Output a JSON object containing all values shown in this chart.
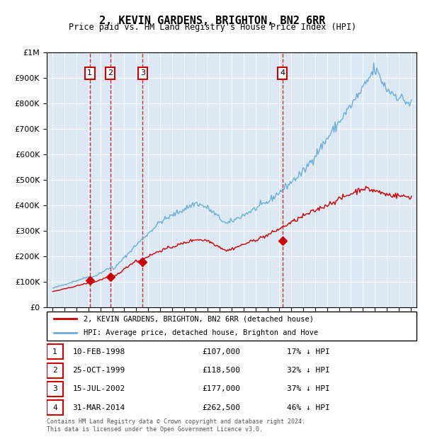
{
  "title": "2, KEVIN GARDENS, BRIGHTON, BN2 6RR",
  "subtitle": "Price paid vs. HM Land Registry's House Price Index (HPI)",
  "bg_color": "#dce9f5",
  "plot_bg_color": "#dce9f5",
  "hpi_color": "#6baed6",
  "price_color": "#cc0000",
  "marker_color": "#cc0000",
  "vline_color": "#cc0000",
  "transactions": [
    {
      "num": 1,
      "date": "10-FEB-1998",
      "year": 1998.11,
      "price": 107000,
      "pct": "17%"
    },
    {
      "num": 2,
      "date": "25-OCT-1999",
      "year": 1999.82,
      "price": 118500,
      "pct": "32%"
    },
    {
      "num": 3,
      "date": "15-JUL-2002",
      "year": 2002.54,
      "price": 177000,
      "pct": "37%"
    },
    {
      "num": 4,
      "date": "31-MAR-2014",
      "year": 2014.25,
      "price": 262500,
      "pct": "46%"
    }
  ],
  "ylim": [
    0,
    1000000
  ],
  "xlim_start": 1994.5,
  "xlim_end": 2025.5,
  "footer": "Contains HM Land Registry data © Crown copyright and database right 2024.\nThis data is licensed under the Open Government Licence v3.0.",
  "legend_line1": "2, KEVIN GARDENS, BRIGHTON, BN2 6RR (detached house)",
  "legend_line2": "HPI: Average price, detached house, Brighton and Hove"
}
